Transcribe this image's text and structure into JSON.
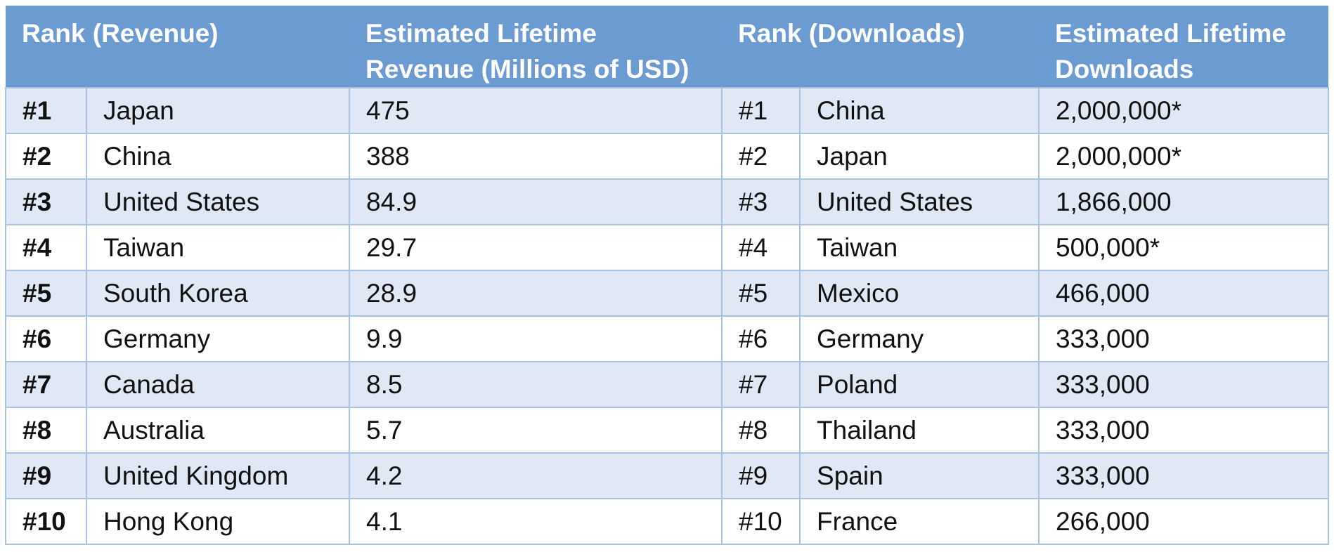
{
  "chart_data": {
    "type": "table",
    "headers": [
      "Rank (Revenue)",
      "Estimated Lifetime Revenue (Millions of USD)",
      "Rank (Downloads)",
      "Estimated Lifetime Downloads"
    ],
    "rows": [
      {
        "rev_rank": "#1",
        "rev_country": "Japan",
        "revenue": "475",
        "dl_rank": "#1",
        "dl_country": "China",
        "downloads": "2,000,000*"
      },
      {
        "rev_rank": "#2",
        "rev_country": "China",
        "revenue": "388",
        "dl_rank": "#2",
        "dl_country": "Japan",
        "downloads": "2,000,000*"
      },
      {
        "rev_rank": "#3",
        "rev_country": "United States",
        "revenue": "84.9",
        "dl_rank": "#3",
        "dl_country": "United States",
        "downloads": "1,866,000"
      },
      {
        "rev_rank": "#4",
        "rev_country": "Taiwan",
        "revenue": "29.7",
        "dl_rank": "#4",
        "dl_country": "Taiwan",
        "downloads": "500,000*"
      },
      {
        "rev_rank": "#5",
        "rev_country": "South Korea",
        "revenue": "28.9",
        "dl_rank": "#5",
        "dl_country": "Mexico",
        "downloads": "466,000"
      },
      {
        "rev_rank": "#6",
        "rev_country": "Germany",
        "revenue": "9.9",
        "dl_rank": "#6",
        "dl_country": "Germany",
        "downloads": "333,000"
      },
      {
        "rev_rank": "#7",
        "rev_country": "Canada",
        "revenue": "8.5",
        "dl_rank": "#7",
        "dl_country": "Poland",
        "downloads": "333,000"
      },
      {
        "rev_rank": "#8",
        "rev_country": "Australia",
        "revenue": "5.7",
        "dl_rank": "#8",
        "dl_country": "Thailand",
        "downloads": "333,000"
      },
      {
        "rev_rank": "#9",
        "rev_country": "United Kingdom",
        "revenue": "4.2",
        "dl_rank": "#9",
        "dl_country": "Spain",
        "downloads": "333,000"
      },
      {
        "rev_rank": "#10",
        "rev_country": "Hong Kong",
        "revenue": "4.1",
        "dl_rank": "#10",
        "dl_country": "France",
        "downloads": "266,000"
      }
    ]
  },
  "colors": {
    "header_background": "#6b9bd1",
    "header_text": "#ffffff",
    "row_stripe": "#dfe8f4",
    "row_plain": "#ffffff",
    "grid_line": "#a8c2e2"
  }
}
